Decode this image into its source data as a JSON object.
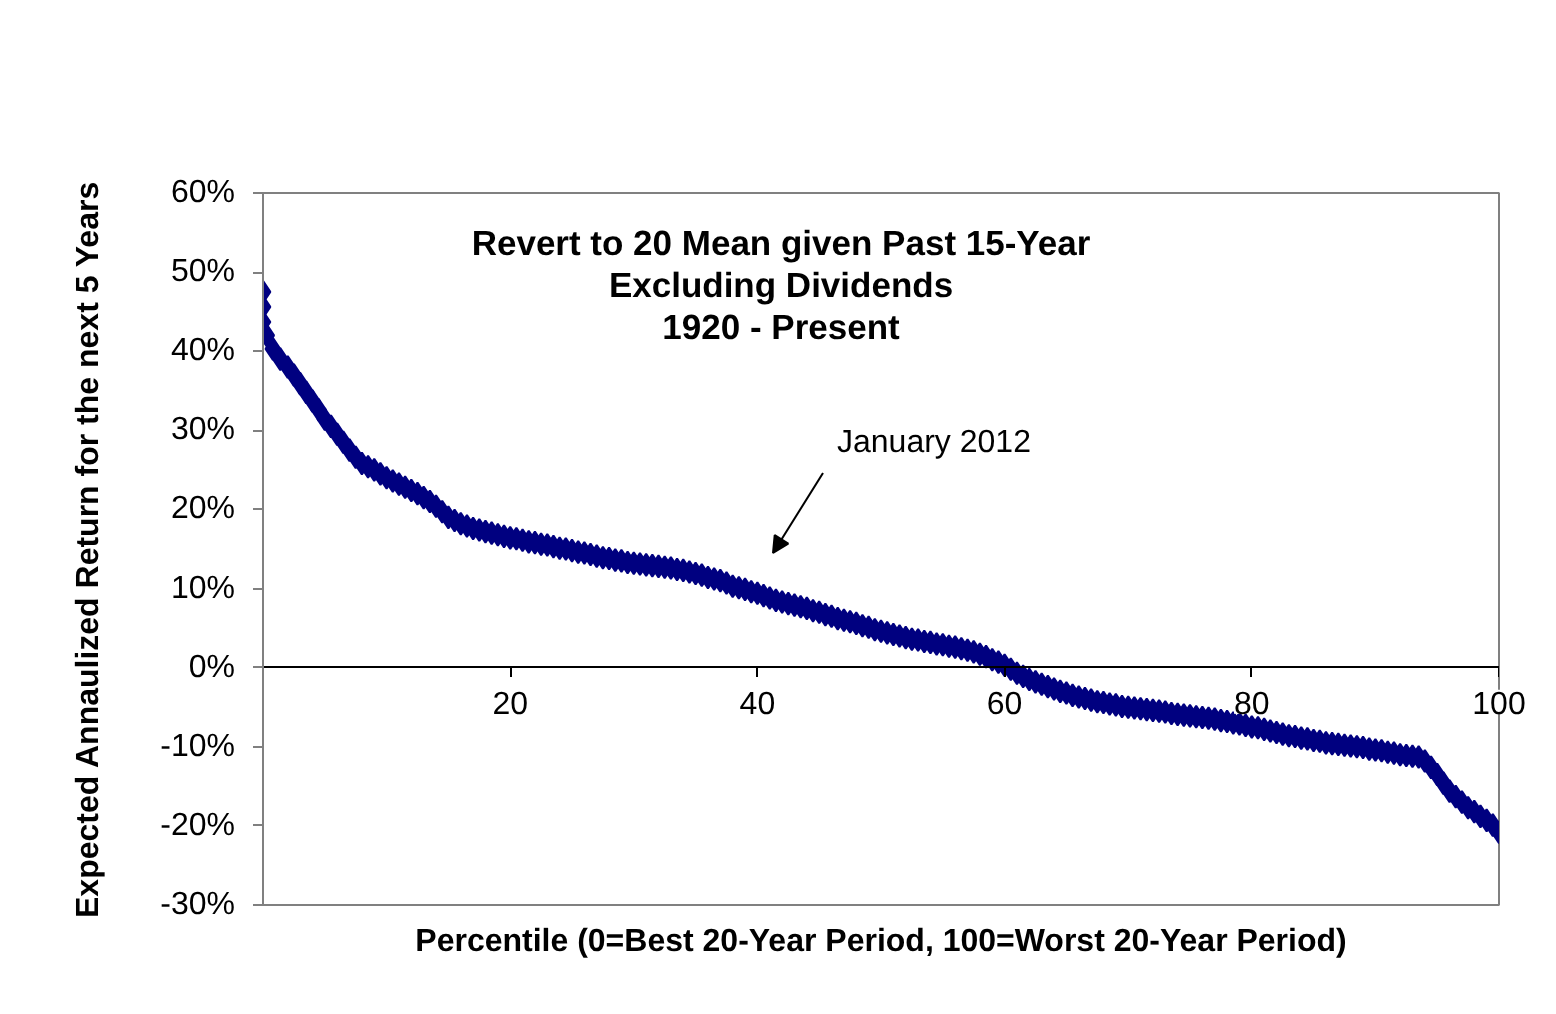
{
  "chart_data": {
    "type": "scatter",
    "title": "Revert to 20 Mean given Past 15-Year\nExcluding Dividends\n1920 - Present",
    "xlabel": "Percentile (0=Best 20-Year Period, 100=Worst 20-Year Period)",
    "ylabel": "Expected Annaulized Return for the next 5 Years",
    "annotations": [
      "January 2012"
    ],
    "x": [
      0,
      0,
      0,
      0.3,
      0.8,
      1.4,
      2,
      2.5,
      3,
      3.5,
      4,
      4.5,
      5,
      5.5,
      6,
      6.5,
      7,
      7.5,
      8,
      8.5,
      9,
      9.5,
      10,
      10.5,
      11,
      11.5,
      12,
      12.5,
      13,
      13.5,
      14,
      14.5,
      15,
      15.5,
      16,
      16.5,
      17,
      17.5,
      18,
      18.5,
      19,
      19.5,
      20,
      20.5,
      21,
      21.5,
      22,
      22.5,
      23,
      23.5,
      24,
      24.5,
      25,
      25.5,
      26,
      26.5,
      27,
      27.5,
      28,
      28.5,
      29,
      29.5,
      30,
      30.5,
      31,
      31.5,
      32,
      32.5,
      33,
      33.5,
      34,
      34.5,
      35,
      35.5,
      36,
      36.5,
      37,
      37.5,
      38,
      38.5,
      39,
      39.5,
      40,
      40.5,
      41,
      41.5,
      42,
      42.5,
      43,
      43.5,
      44,
      44.5,
      45,
      45.5,
      46,
      46.5,
      47,
      47.5,
      48,
      48.5,
      49,
      49.5,
      50,
      50.5,
      51,
      51.5,
      52,
      52.5,
      53,
      53.5,
      54,
      54.5,
      55,
      55.5,
      56,
      56.5,
      57,
      57.5,
      58,
      58.5,
      59,
      59.5,
      60,
      60.5,
      61,
      61.5,
      62,
      62.5,
      63,
      63.5,
      64,
      64.5,
      65,
      65.5,
      66,
      66.5,
      67,
      67.5,
      68,
      68.5,
      69,
      69.5,
      70,
      70.5,
      71,
      71.5,
      72,
      72.5,
      73,
      73.5,
      74,
      74.5,
      75,
      75.5,
      76,
      76.5,
      77,
      77.5,
      78,
      78.5,
      79,
      79.5,
      80,
      80.5,
      81,
      81.5,
      82,
      82.5,
      83,
      83.5,
      84,
      84.5,
      85,
      85.5,
      86,
      86.5,
      87,
      87.5,
      88,
      88.5,
      89,
      89.5,
      90,
      90.5,
      91,
      91.5,
      92,
      92.5,
      93,
      93.5,
      94,
      94.5,
      95,
      95.5,
      96,
      96.5,
      97,
      97.5,
      98,
      98.5,
      99,
      99.5,
      100
    ],
    "series": [
      {
        "color": "#000080",
        "values": [
          47.5,
          45.6,
          43.7,
          42.0,
          40.3,
          39.0,
          38.0,
          37.0,
          35.9,
          34.8,
          33.7,
          32.6,
          31.4,
          30.5,
          29.5,
          28.5,
          27.5,
          26.6,
          25.8,
          25.4,
          25.0,
          24.5,
          24.0,
          23.6,
          23.2,
          22.8,
          22.4,
          22.0,
          21.5,
          21.0,
          20.4,
          19.7,
          19.0,
          18.6,
          18.2,
          17.9,
          17.6,
          17.4,
          17.2,
          17.0,
          16.8,
          16.6,
          16.4,
          16.3,
          16.1,
          15.9,
          15.8,
          15.6,
          15.5,
          15.3,
          15.1,
          15.0,
          14.8,
          14.6,
          14.5,
          14.3,
          14.1,
          13.9,
          13.8,
          13.6,
          13.5,
          13.3,
          13.2,
          13.1,
          13.0,
          12.9,
          12.8,
          12.7,
          12.6,
          12.4,
          12.3,
          12.1,
          11.9,
          11.7,
          11.4,
          11.2,
          11.0,
          10.7,
          10.3,
          10.1,
          9.9,
          9.6,
          9.4,
          9.1,
          8.8,
          8.5,
          8.3,
          8.1,
          7.9,
          7.7,
          7.5,
          7.2,
          7.0,
          6.7,
          6.5,
          6.2,
          6.0,
          5.8,
          5.6,
          5.3,
          5.1,
          4.8,
          4.6,
          4.4,
          4.2,
          4.0,
          3.8,
          3.6,
          3.5,
          3.3,
          3.2,
          3.0,
          2.9,
          2.7,
          2.6,
          2.4,
          2.2,
          2.0,
          1.7,
          1.4,
          1.0,
          0.7,
          0.3,
          -0.2,
          -0.7,
          -1.1,
          -1.5,
          -1.8,
          -2.1,
          -2.4,
          -2.7,
          -3.0,
          -3.2,
          -3.5,
          -3.7,
          -3.9,
          -4.1,
          -4.3,
          -4.4,
          -4.6,
          -4.7,
          -4.9,
          -5.0,
          -5.1,
          -5.2,
          -5.3,
          -5.4,
          -5.5,
          -5.6,
          -5.8,
          -5.9,
          -6.0,
          -6.1,
          -6.2,
          -6.3,
          -6.4,
          -6.5,
          -6.7,
          -6.8,
          -7.0,
          -7.1,
          -7.3,
          -7.5,
          -7.6,
          -7.8,
          -8.0,
          -8.2,
          -8.4,
          -8.6,
          -8.7,
          -8.9,
          -9.0,
          -9.2,
          -9.3,
          -9.5,
          -9.6,
          -9.7,
          -9.8,
          -9.9,
          -10.0,
          -10.1,
          -10.3,
          -10.4,
          -10.5,
          -10.7,
          -10.8,
          -11.0,
          -11.1,
          -11.2,
          -11.3,
          -11.8,
          -12.6,
          -13.5,
          -14.6,
          -15.6,
          -16.3,
          -17.0,
          -17.7,
          -18.2,
          -18.8,
          -19.3,
          -19.9,
          -20.8
        ]
      }
    ],
    "xlim": [
      0,
      100
    ],
    "ylim": [
      -30,
      60
    ],
    "xticks": [
      {
        "value": 0,
        "label": null
      },
      20,
      40,
      60,
      80,
      100
    ],
    "yticks": [
      {
        "value": -30,
        "label": "-30%"
      },
      {
        "value": -20,
        "label": "-20%"
      },
      {
        "value": -10,
        "label": "-10%"
      },
      {
        "value": 0,
        "label": "0%"
      },
      {
        "value": 10,
        "label": "10%"
      },
      {
        "value": 20,
        "label": "20%"
      },
      {
        "value": 30,
        "label": "30%"
      },
      {
        "value": 40,
        "label": "40%"
      },
      {
        "value": 50,
        "label": "50%"
      },
      {
        "value": 60,
        "label": "60%"
      }
    ],
    "marker": "diamond",
    "grid": false
  }
}
